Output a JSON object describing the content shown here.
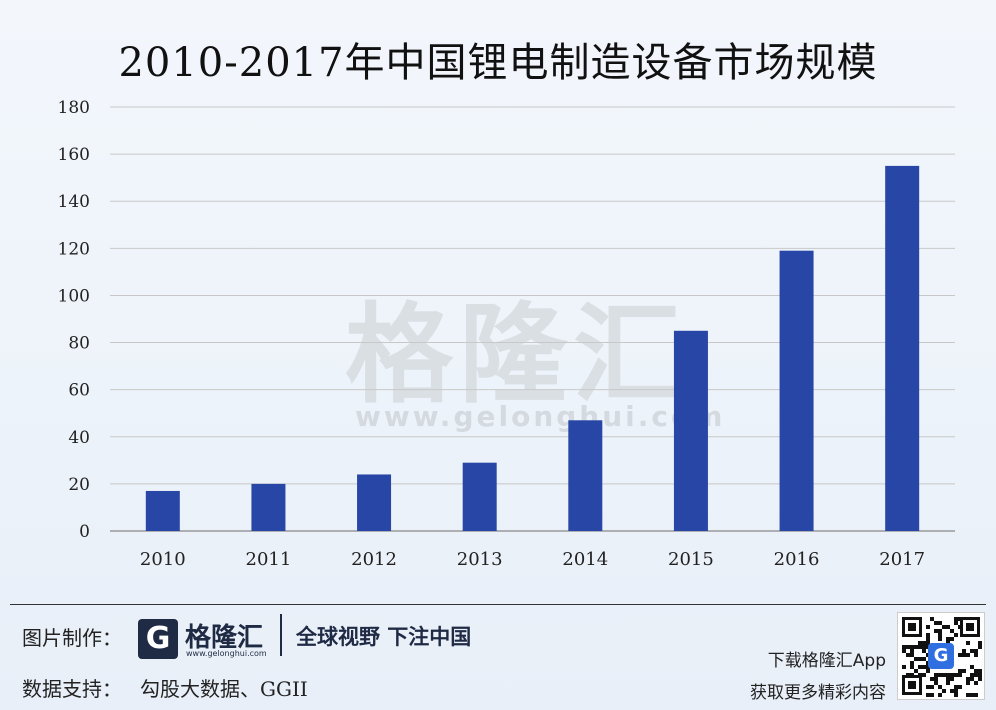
{
  "title": "2010-2017年中国锂电制造设备市场规模",
  "chart_data": {
    "type": "bar",
    "categories": [
      "2010",
      "2011",
      "2012",
      "2013",
      "2014",
      "2015",
      "2016",
      "2017"
    ],
    "values": [
      17,
      20,
      24,
      29,
      47,
      85,
      119,
      155
    ],
    "yticks": [
      "0",
      "20",
      "40",
      "60",
      "80",
      "100",
      "120",
      "140",
      "160",
      "180"
    ],
    "ylim": [
      0,
      180
    ],
    "grid": true,
    "bar_color": "#2746a6"
  },
  "watermark": {
    "brand": "格隆汇",
    "url": "www.gelonghui.com"
  },
  "footer": {
    "made_by_label": "图片制作：",
    "logo_letter": "G",
    "logo_text": "格隆汇",
    "logo_url": "www.gelonghui.com",
    "slogan": "全球视野 下注中国",
    "source_label": "数据支持：",
    "source_text": "勾股大数据、GGII",
    "download_text": "下载格隆汇App",
    "more_text": "获取更多精彩内容",
    "qr_letter": "G"
  }
}
